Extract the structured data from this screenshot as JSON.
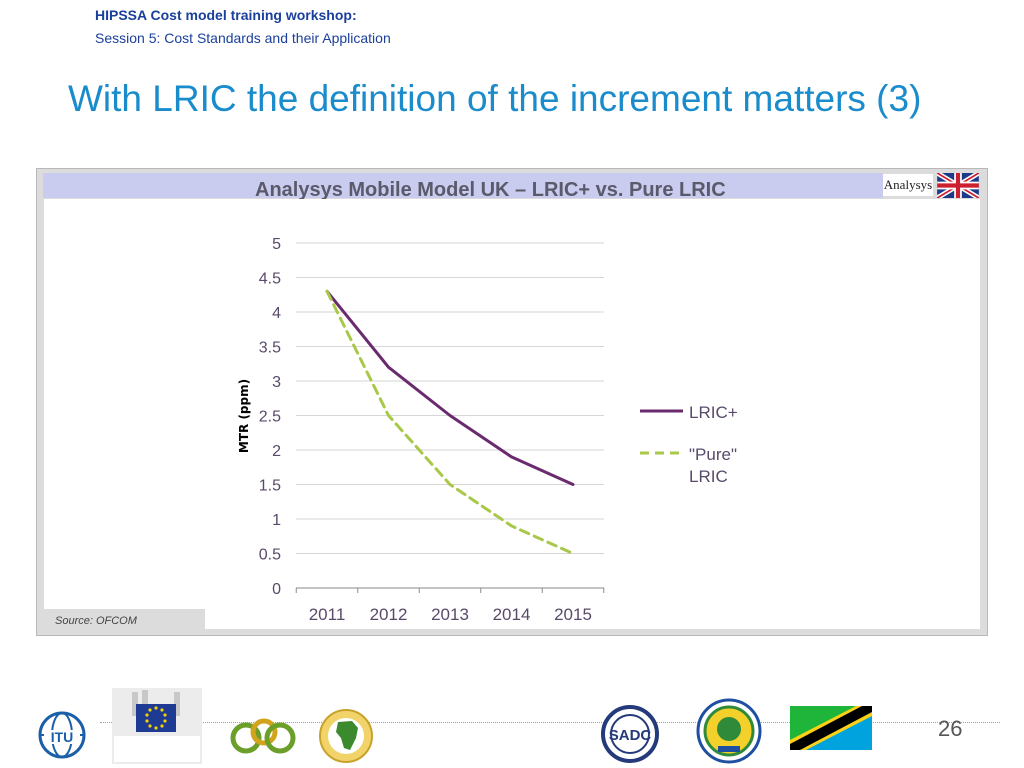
{
  "header": {
    "workshop": "HIPSSA Cost model training workshop:",
    "session": "Session 5: Cost Standards and their Application"
  },
  "slide_title": "With LRIC the definition of the increment matters (3)",
  "panel": {
    "banner_title": "Analysys Mobile Model UK – LRIC+ vs. Pure LRIC",
    "analysys_logo_text": "Analysys",
    "source": "Source: OFCOM"
  },
  "chart_data": {
    "type": "line",
    "title": "Analysys Mobile Model UK – LRIC+ vs. Pure LRIC",
    "xlabel": "",
    "ylabel": "MTR (ppm)",
    "x": [
      "2011",
      "2012",
      "2013",
      "2014",
      "2015"
    ],
    "ylim": [
      0,
      5
    ],
    "yticks": [
      "0",
      "0.5",
      "1",
      "1.5",
      "2",
      "2.5",
      "3",
      "3.5",
      "4",
      "4.5",
      "5"
    ],
    "grid": true,
    "legend_position": "right",
    "series": [
      {
        "name": "LRIC+",
        "values": [
          4.3,
          3.2,
          2.5,
          1.9,
          1.5
        ],
        "color": "#6a2a6e",
        "style": "solid"
      },
      {
        "name": "\"Pure\" LRIC",
        "values": [
          4.3,
          2.5,
          1.5,
          0.9,
          0.5
        ],
        "color": "#a8c84a",
        "style": "dashed"
      }
    ]
  },
  "footer": {
    "page_number": "26",
    "logos": [
      "itu-logo",
      "european-commission-logo",
      "acp-logo",
      "african-union-logo",
      "sadc-logo",
      "eac-logo",
      "tanzania-flag"
    ]
  },
  "colors": {
    "title_blue": "#1a8ccc",
    "header_blue": "#1a3f9c",
    "banner": "#c9cbef"
  }
}
